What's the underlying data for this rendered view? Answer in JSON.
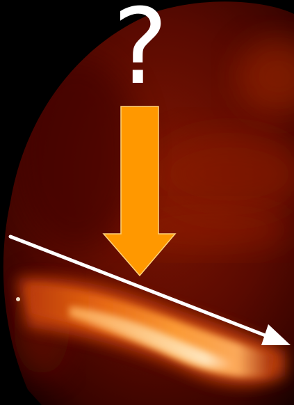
{
  "annotation": {
    "question_text": "?"
  },
  "colors": {
    "background": "#000000",
    "dark_red": "#4a0600",
    "mid_red": "#8a1c02",
    "bright_red": "#c23a06",
    "glow_orange": "#ff9a2a",
    "glow_yellow": "#ffe9b8",
    "arrow_orange": "#ff9800",
    "line_white": "#ffffff"
  },
  "icons": {
    "down_arrow": "down-arrow-icon",
    "line_arrow": "diagonal-line-arrow-icon"
  }
}
